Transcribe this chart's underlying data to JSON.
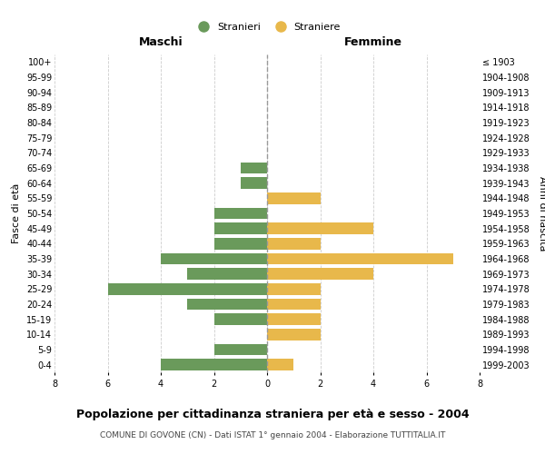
{
  "age_groups": [
    "100+",
    "95-99",
    "90-94",
    "85-89",
    "80-84",
    "75-79",
    "70-74",
    "65-69",
    "60-64",
    "55-59",
    "50-54",
    "45-49",
    "40-44",
    "35-39",
    "30-34",
    "25-29",
    "20-24",
    "15-19",
    "10-14",
    "5-9",
    "0-4"
  ],
  "birth_years": [
    "≤ 1903",
    "1904-1908",
    "1909-1913",
    "1914-1918",
    "1919-1923",
    "1924-1928",
    "1929-1933",
    "1934-1938",
    "1939-1943",
    "1944-1948",
    "1949-1953",
    "1954-1958",
    "1959-1963",
    "1964-1968",
    "1969-1973",
    "1974-1978",
    "1979-1983",
    "1984-1988",
    "1989-1993",
    "1994-1998",
    "1999-2003"
  ],
  "maschi": [
    0,
    0,
    0,
    0,
    0,
    0,
    0,
    1,
    1,
    0,
    2,
    2,
    2,
    4,
    3,
    6,
    3,
    2,
    0,
    2,
    4
  ],
  "femmine": [
    0,
    0,
    0,
    0,
    0,
    0,
    0,
    0,
    0,
    2,
    0,
    4,
    2,
    7,
    4,
    2,
    2,
    2,
    2,
    0,
    1
  ],
  "maschi_color": "#6a9a5b",
  "femmine_color": "#e8b84b",
  "title": "Popolazione per cittadinanza straniera per età e sesso - 2004",
  "subtitle": "COMUNE DI GOVONE (CN) - Dati ISTAT 1° gennaio 2004 - Elaborazione TUTTITALIA.IT",
  "xlabel_left": "Maschi",
  "xlabel_right": "Femmine",
  "ylabel_left": "Fasce di età",
  "ylabel_right": "Anni di nascita",
  "legend_stranieri": "Stranieri",
  "legend_straniere": "Straniere",
  "xlim": 8,
  "bar_height": 0.75,
  "background_color": "#ffffff",
  "grid_color": "#cccccc",
  "center_line_color": "#999999"
}
